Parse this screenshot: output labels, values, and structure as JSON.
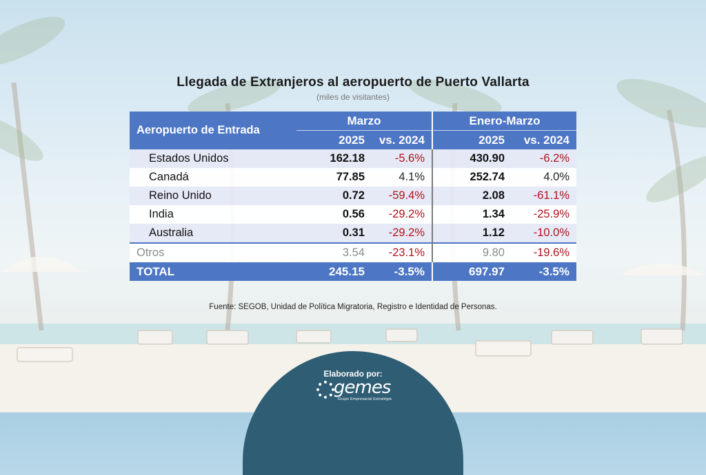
{
  "title": "Llegada de Extranjeros al aeropuerto de Puerto Vallarta",
  "subtitle": "(miles de visitantes)",
  "table": {
    "header": {
      "entrada": "Aeropuerto de Entrada",
      "group1": "Marzo",
      "group2": "Enero-Marzo",
      "col_year": "2025",
      "col_vs": "vs. 2024"
    },
    "rows": [
      {
        "name": "Estados Unidos",
        "m_2025": "162.18",
        "m_vs": "-5.6%",
        "em_2025": "430.90",
        "em_vs": "-6.2%"
      },
      {
        "name": "Canadá",
        "m_2025": "77.85",
        "m_vs": "4.1%",
        "em_2025": "252.74",
        "em_vs": "4.0%"
      },
      {
        "name": "Reino Unido",
        "m_2025": "0.72",
        "m_vs": "-59.4%",
        "em_2025": "2.08",
        "em_vs": "-61.1%"
      },
      {
        "name": "India",
        "m_2025": "0.56",
        "m_vs": "-29.2%",
        "em_2025": "1.34",
        "em_vs": "-25.9%"
      },
      {
        "name": "Australia",
        "m_2025": "0.31",
        "m_vs": "-29.2%",
        "em_2025": "1.12",
        "em_vs": "-10.0%"
      }
    ],
    "otros": {
      "name": "Otros",
      "m_2025": "3.54",
      "m_vs": "-23.1%",
      "em_2025": "9.80",
      "em_vs": "-19.6%"
    },
    "total": {
      "name": "TOTAL",
      "m_2025": "245.15",
      "m_vs": "-3.5%",
      "em_2025": "697.97",
      "em_vs": "-3.5%"
    }
  },
  "source": "Fuente: SEGOB, Unidad de Política Migratoria, Registro e Identidad de Personas.",
  "footer": {
    "label": "Elaborado por:",
    "logo_word": "gemes",
    "logo_tagline": "Grupo Empresarial Estratégia"
  },
  "colors": {
    "header_blue": "#4d76c4",
    "negative_red": "#b0121b",
    "badge_teal": "#2f5e74"
  }
}
